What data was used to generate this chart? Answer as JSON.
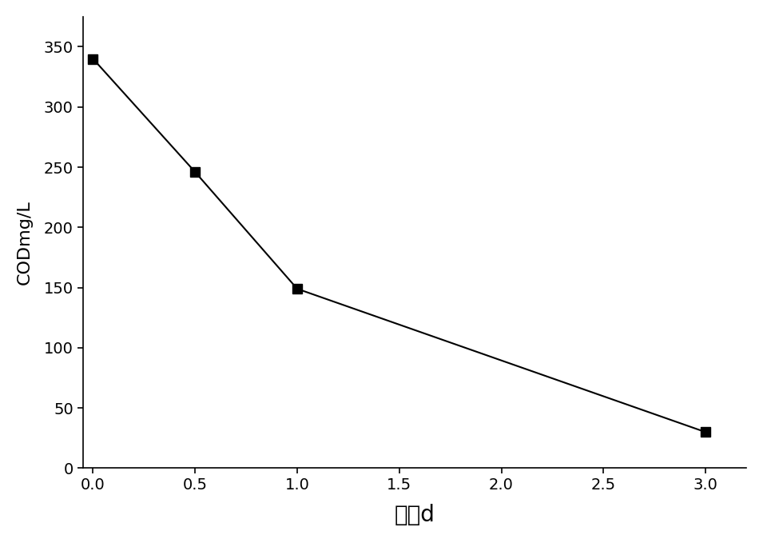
{
  "x": [
    0.0,
    0.5,
    1.0,
    3.0
  ],
  "y": [
    340,
    246,
    149,
    30
  ],
  "xlabel": "时间d",
  "ylabel": "CODmg/L",
  "xlim": [
    -0.05,
    3.2
  ],
  "ylim": [
    0,
    375
  ],
  "xticks": [
    0.0,
    0.5,
    1.0,
    1.5,
    2.0,
    2.5,
    3.0
  ],
  "yticks": [
    0,
    50,
    100,
    150,
    200,
    250,
    300,
    350
  ],
  "line_color": "#000000",
  "marker": "s",
  "marker_size": 8,
  "marker_color": "#000000",
  "line_width": 1.5,
  "title": "",
  "background_color": "#ffffff",
  "xlabel_fontsize": 20,
  "ylabel_fontsize": 16,
  "tick_fontsize": 14
}
